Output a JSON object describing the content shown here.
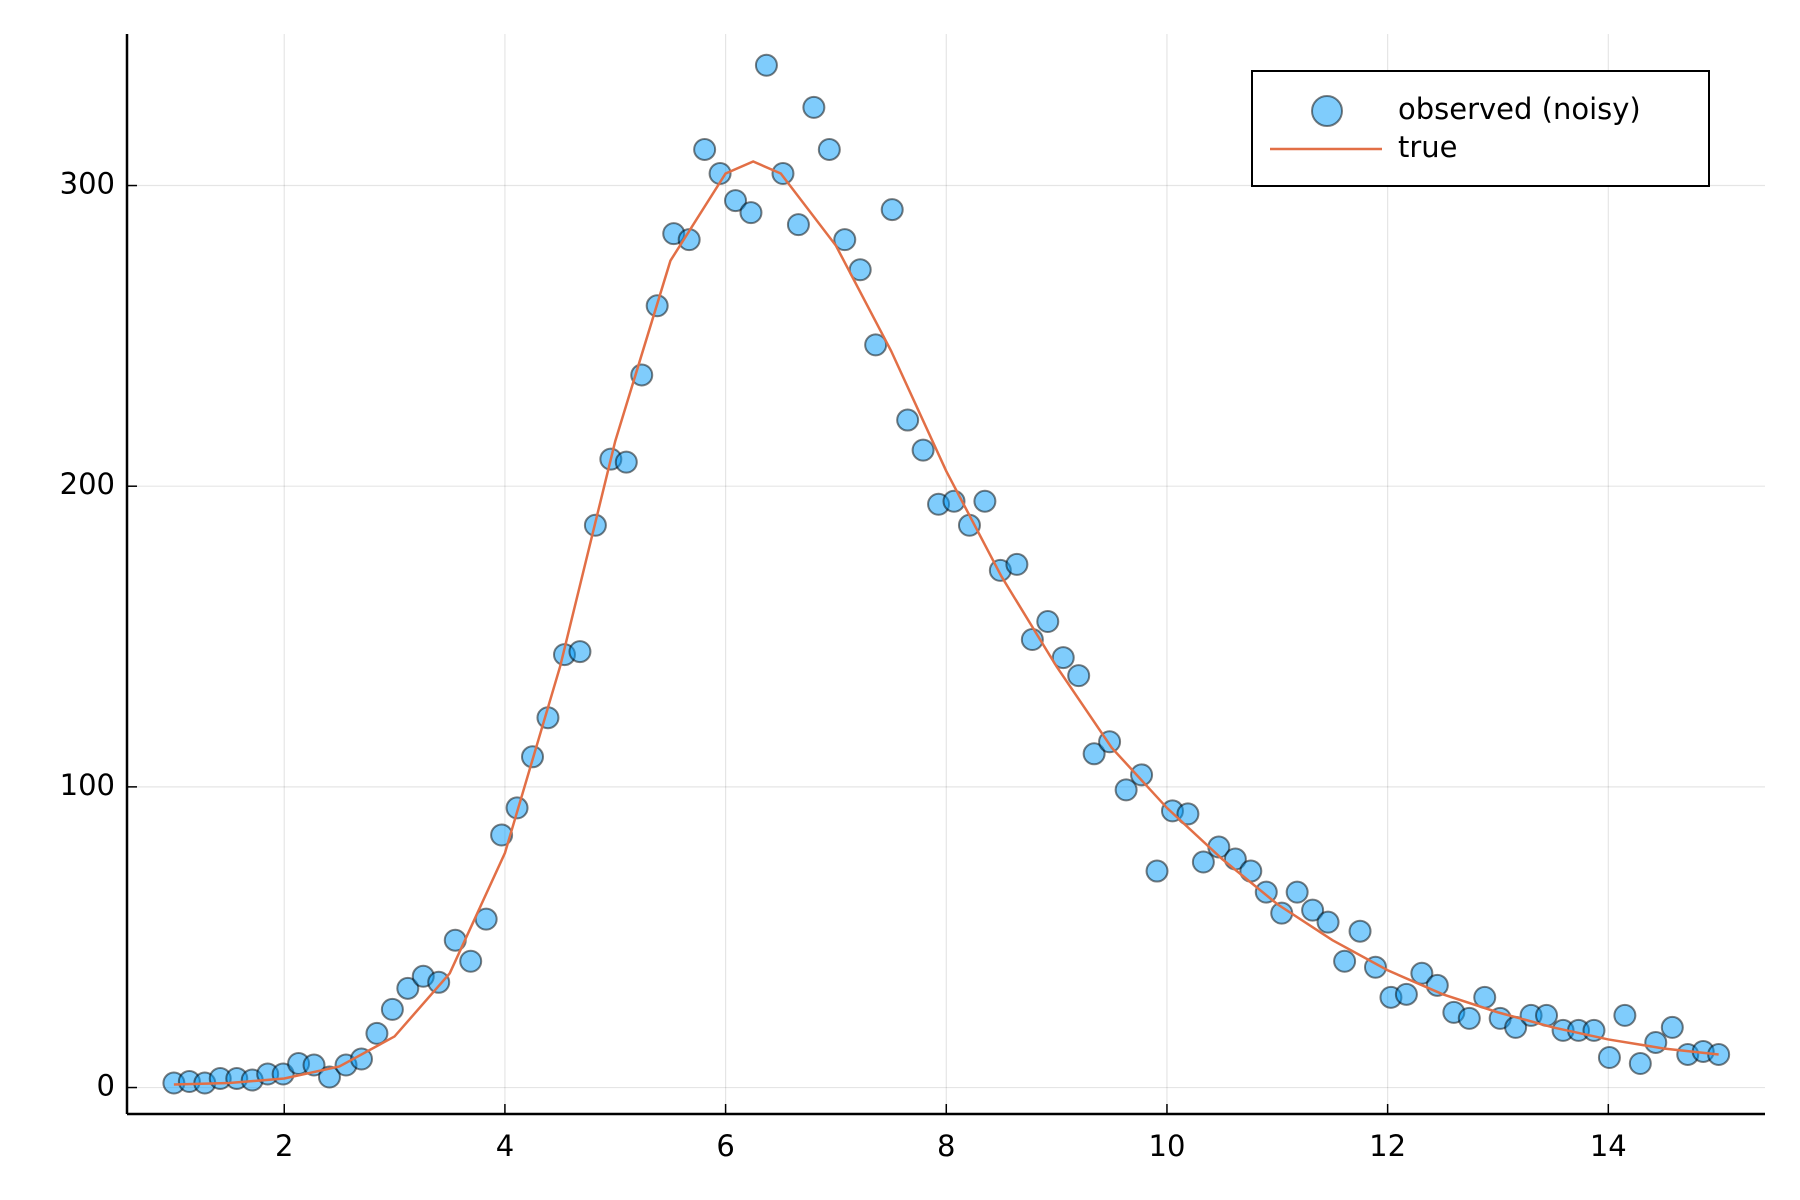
{
  "chart_data": {
    "type": "scatter",
    "xlim": [
      0.575,
      15.42
    ],
    "ylim": [
      -8.8,
      350.4
    ],
    "xticks": [
      2,
      4,
      6,
      8,
      10,
      12,
      14
    ],
    "yticks": [
      0,
      100,
      200,
      300
    ],
    "grid": true,
    "legend": "top-right",
    "series": [
      {
        "name": "observed (noisy)",
        "type": "scatter",
        "color": "#009af9",
        "x": [
          1.0,
          1.14,
          1.28,
          1.42,
          1.57,
          1.71,
          1.85,
          1.99,
          2.13,
          2.27,
          2.41,
          2.56,
          2.7,
          2.84,
          2.98,
          3.12,
          3.26,
          3.4,
          3.55,
          3.69,
          3.83,
          3.97,
          4.11,
          4.25,
          4.39,
          4.54,
          4.68,
          4.82,
          4.96,
          5.1,
          5.24,
          5.38,
          5.53,
          5.67,
          5.81,
          5.95,
          6.09,
          6.23,
          6.37,
          6.52,
          6.66,
          6.8,
          6.94,
          7.08,
          7.22,
          7.36,
          7.51,
          7.65,
          7.79,
          7.93,
          8.07,
          8.21,
          8.35,
          8.49,
          8.64,
          8.78,
          8.92,
          9.06,
          9.2,
          9.34,
          9.48,
          9.63,
          9.77,
          9.91,
          10.05,
          10.19,
          10.33,
          10.47,
          10.62,
          10.76,
          10.9,
          11.04,
          11.18,
          11.32,
          11.46,
          11.61,
          11.75,
          11.89,
          12.03,
          12.17,
          12.31,
          12.45,
          12.6,
          12.74,
          12.88,
          13.02,
          13.16,
          13.3,
          13.44,
          13.59,
          13.73,
          13.87,
          14.01,
          14.15,
          14.29,
          14.43,
          14.58,
          14.72,
          14.86,
          15.0
        ],
        "values": [
          1.5,
          2,
          1.5,
          3,
          3,
          2.5,
          4.5,
          4.5,
          8,
          7.5,
          3.5,
          7.5,
          9.5,
          18,
          26,
          33,
          37,
          35,
          49,
          42,
          56,
          84,
          93,
          110,
          123,
          144,
          145,
          187,
          209,
          208,
          237,
          260,
          284,
          282,
          312,
          304,
          295,
          291,
          340,
          304,
          287,
          326,
          312,
          282,
          272,
          247,
          292,
          222,
          212,
          194,
          195,
          187,
          195,
          172,
          174,
          149,
          155,
          143,
          137,
          111,
          115,
          99,
          104,
          72,
          92,
          91,
          75,
          80,
          76,
          72,
          65,
          58,
          65,
          59,
          55,
          42,
          52,
          40,
          30,
          31,
          38,
          34,
          25,
          23,
          30,
          23,
          20,
          24,
          24,
          19,
          19,
          19,
          10,
          24,
          8,
          15,
          20,
          11,
          12,
          11
        ]
      },
      {
        "name": "true",
        "type": "line",
        "color": "#e26f46",
        "x": [
          1,
          1.5,
          2,
          2.5,
          3,
          3.5,
          4,
          4.5,
          5,
          5.5,
          6,
          6.25,
          6.5,
          7,
          7.5,
          8,
          8.5,
          9,
          9.5,
          10,
          10.5,
          11,
          11.5,
          12,
          12.5,
          13,
          13.5,
          14,
          14.5,
          15
        ],
        "values": [
          1,
          1.5,
          3,
          7,
          17,
          38,
          78,
          140,
          215,
          275,
          304,
          308,
          304,
          280,
          245,
          205,
          170,
          140,
          113,
          93,
          76,
          61,
          49,
          39,
          31,
          25,
          20,
          16,
          13,
          11
        ]
      }
    ]
  }
}
